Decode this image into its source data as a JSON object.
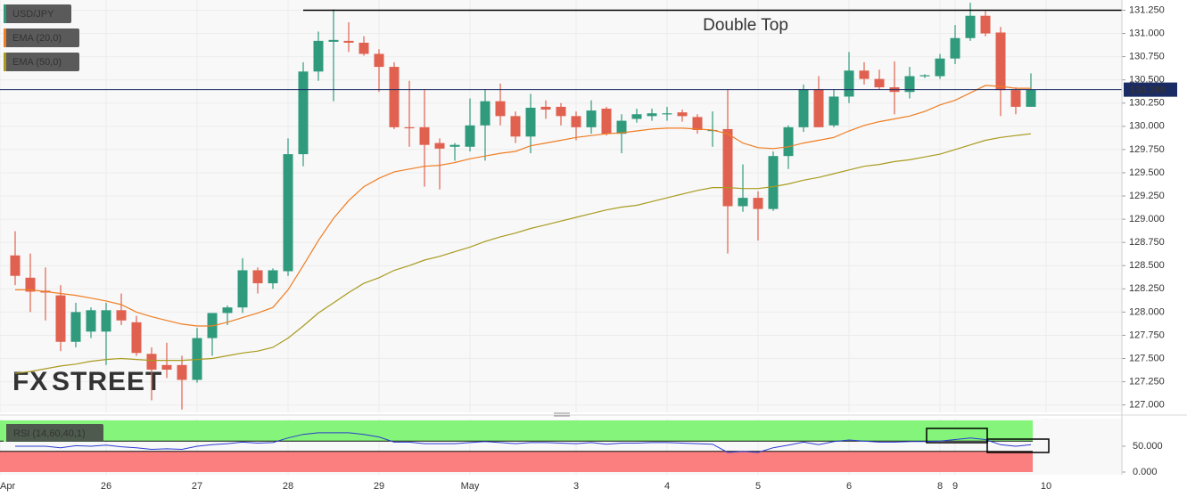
{
  "chart_data": {
    "type": "candlestick",
    "x": [
      0,
      1,
      2,
      3,
      4,
      5,
      6,
      7,
      8,
      9,
      10,
      11,
      12,
      13,
      14,
      15,
      16,
      17,
      18,
      19,
      20,
      21,
      22,
      23,
      24,
      25,
      26,
      27,
      28,
      29,
      30,
      31,
      32,
      33,
      34,
      35,
      36,
      37,
      38,
      39,
      40,
      41,
      42,
      43,
      44,
      45,
      46,
      47,
      48,
      49,
      50,
      51,
      52,
      53,
      54,
      55,
      56,
      57,
      58,
      59,
      60,
      61,
      62,
      63,
      64,
      65,
      66,
      67
    ],
    "xlim": [
      -1,
      73
    ],
    "xticks": [
      {
        "value": -1,
        "label": "Apr"
      },
      {
        "value": 6,
        "label": "26"
      },
      {
        "value": 12,
        "label": "27"
      },
      {
        "value": 18,
        "label": "28"
      },
      {
        "value": 24,
        "label": "29"
      },
      {
        "value": 30,
        "label": "May"
      },
      {
        "value": 37,
        "label": "3"
      },
      {
        "value": 43,
        "label": "4"
      },
      {
        "value": 49,
        "label": "5"
      },
      {
        "value": 55,
        "label": "6"
      },
      {
        "value": 61,
        "label": "8"
      },
      {
        "value": 62,
        "label": "9"
      },
      {
        "value": 68,
        "label": "10"
      }
    ],
    "ylim": [
      126.92,
      131.36
    ],
    "yticks": [
      {
        "value": 127,
        "label": "127.000"
      },
      {
        "value": 127.25,
        "label": "127.250"
      },
      {
        "value": 127.5,
        "label": "127.500"
      },
      {
        "value": 127.75,
        "label": "127.750"
      },
      {
        "value": 128,
        "label": "128.000"
      },
      {
        "value": 128.25,
        "label": "128.250"
      },
      {
        "value": 128.5,
        "label": "128.500"
      },
      {
        "value": 128.75,
        "label": "128.750"
      },
      {
        "value": 129,
        "label": "129.000"
      },
      {
        "value": 129.25,
        "label": "129.250"
      },
      {
        "value": 129.5,
        "label": "129.500"
      },
      {
        "value": 129.75,
        "label": "129.750"
      },
      {
        "value": 130,
        "label": "130.000"
      },
      {
        "value": 130.25,
        "label": "130.250"
      },
      {
        "value": 130.5,
        "label": "130.500"
      },
      {
        "value": 130.75,
        "label": "130.750"
      },
      {
        "value": 131,
        "label": "131.000"
      },
      {
        "value": 131.25,
        "label": "131.250"
      }
    ],
    "grid": true,
    "last_price": 130.395,
    "annotation": {
      "text": "Double Top",
      "level": 131.25
    },
    "watermark": [
      "FX",
      "STREET"
    ],
    "series": [
      {
        "name": "USD/JPY",
        "color": "#2f9a7c",
        "down_color": "#e0614f",
        "open": [
          128.61,
          128.37,
          128.23,
          128.18,
          127.68,
          127.79,
          127.79,
          128.02,
          127.89,
          127.55,
          127.43,
          127.43,
          127.27,
          127.72,
          127.99,
          128.05,
          128.45,
          128.31,
          128.44,
          129.7,
          130.59,
          130.91,
          130.92,
          130.9,
          130.78,
          130.64,
          129.99,
          129.99,
          129.82,
          129.78,
          129.78,
          130.01,
          130.27,
          130.11,
          129.89,
          130.21,
          130.21,
          130.11,
          129.99,
          130.19,
          129.92,
          130.08,
          130.11,
          130.13,
          130.15,
          130.1,
          129.95,
          129.97,
          129.14,
          129.23,
          129.11,
          129.68,
          129.99,
          130.4,
          130.01,
          130.32,
          130.6,
          130.51,
          130.42,
          130.37,
          130.54,
          130.54,
          130.73,
          130.95,
          131.19,
          131.01,
          130.39,
          130.21
        ],
        "high": [
          128.87,
          128.63,
          128.48,
          128.29,
          128.1,
          128.05,
          128.1,
          128.2,
          127.96,
          127.62,
          127.67,
          127.53,
          127.83,
          127.99,
          128.07,
          128.58,
          128.48,
          128.47,
          129.87,
          130.69,
          131.02,
          131.26,
          131.12,
          130.97,
          130.83,
          130.69,
          130.49,
          130.4,
          129.87,
          129.82,
          130.3,
          130.4,
          130.46,
          130.16,
          130.35,
          130.28,
          130.25,
          130.16,
          130.28,
          130.21,
          130.13,
          130.19,
          130.19,
          130.21,
          130.18,
          130.13,
          130.16,
          130.4,
          129.59,
          129.3,
          129.73,
          130.01,
          130.45,
          130.54,
          130.4,
          130.8,
          130.69,
          130.61,
          130.7,
          130.64,
          130.56,
          130.78,
          131.09,
          131.33,
          131.24,
          131.07,
          130.42,
          130.57
        ],
        "low": [
          128.29,
          128.0,
          127.91,
          127.58,
          127.62,
          127.72,
          127.43,
          127.86,
          127.53,
          127.05,
          127.29,
          126.95,
          127.24,
          127.53,
          127.86,
          127.99,
          128.2,
          128.25,
          128.39,
          129.57,
          130.49,
          130.27,
          130.8,
          130.76,
          130.37,
          129.97,
          129.78,
          129.35,
          129.32,
          129.63,
          129.73,
          129.63,
          130.01,
          129.82,
          129.71,
          130.08,
          130.01,
          129.85,
          129.92,
          129.9,
          129.71,
          130.04,
          130.06,
          130.06,
          130.05,
          129.92,
          129.78,
          128.63,
          129.08,
          128.77,
          129.09,
          129.54,
          129.94,
          129.99,
          129.99,
          130.25,
          130.45,
          130.4,
          130.13,
          130.3,
          130.52,
          130.51,
          130.67,
          130.92,
          130.97,
          130.11,
          130.13,
          130.21
        ],
        "close": [
          128.39,
          128.22,
          128.21,
          127.68,
          128.0,
          128.02,
          128.02,
          127.91,
          127.56,
          127.38,
          127.38,
          127.27,
          127.72,
          127.99,
          128.05,
          128.45,
          128.31,
          128.45,
          129.7,
          130.59,
          130.92,
          130.93,
          130.9,
          130.78,
          130.64,
          129.99,
          129.98,
          129.8,
          129.76,
          129.8,
          130.01,
          130.27,
          130.11,
          129.89,
          130.2,
          130.18,
          130.11,
          129.99,
          130.17,
          129.92,
          130.06,
          130.13,
          130.14,
          130.14,
          130.11,
          129.96,
          129.96,
          129.14,
          129.23,
          129.11,
          129.68,
          129.99,
          130.4,
          129.99,
          130.32,
          130.6,
          130.51,
          130.42,
          130.37,
          130.54,
          130.55,
          130.73,
          130.95,
          131.19,
          131.0,
          130.39,
          130.21,
          130.395
        ]
      },
      {
        "name": "EMA (20,0)",
        "color": "#ef7d22",
        "values": [
          128.24,
          128.24,
          128.22,
          128.2,
          128.18,
          128.15,
          128.12,
          128.08,
          128.0,
          127.95,
          127.91,
          127.87,
          127.85,
          127.85,
          127.89,
          127.94,
          127.99,
          128.05,
          128.24,
          128.5,
          128.77,
          129.01,
          129.2,
          129.35,
          129.44,
          129.51,
          129.54,
          129.57,
          129.58,
          129.61,
          129.65,
          129.68,
          129.71,
          129.73,
          129.79,
          129.82,
          129.85,
          129.88,
          129.9,
          129.92,
          129.93,
          129.95,
          129.97,
          129.98,
          129.98,
          129.97,
          129.96,
          129.92,
          129.82,
          129.77,
          129.76,
          129.78,
          129.82,
          129.85,
          129.88,
          129.95,
          130.01,
          130.05,
          130.08,
          130.11,
          130.16,
          130.23,
          130.28,
          130.36,
          130.44,
          130.43,
          130.41,
          130.41
        ]
      },
      {
        "name": "EMA (50,0)",
        "color": "#a89b1f",
        "values": [
          127.34,
          127.36,
          127.39,
          127.42,
          127.44,
          127.47,
          127.49,
          127.5,
          127.49,
          127.48,
          127.48,
          127.48,
          127.49,
          127.5,
          127.53,
          127.56,
          127.58,
          127.62,
          127.72,
          127.85,
          127.99,
          128.1,
          128.21,
          128.31,
          128.37,
          128.45,
          128.5,
          128.56,
          128.6,
          128.65,
          128.7,
          128.76,
          128.81,
          128.85,
          128.9,
          128.94,
          128.98,
          129.02,
          129.06,
          129.1,
          129.13,
          129.15,
          129.19,
          129.23,
          129.27,
          129.31,
          129.34,
          129.34,
          129.33,
          129.33,
          129.35,
          129.38,
          129.42,
          129.45,
          129.49,
          129.53,
          129.57,
          129.59,
          129.62,
          129.64,
          129.67,
          129.7,
          129.75,
          129.8,
          129.85,
          129.88,
          129.9,
          129.92
        ]
      }
    ],
    "rsi": {
      "name": "RSI (14,60,40,1)",
      "color": "#2a3ad0",
      "upper": 60,
      "lower": 40,
      "ylim": [
        0,
        100
      ],
      "yticks": [
        {
          "value": 0,
          "label": "0.000"
        },
        {
          "value": 50,
          "label": "50.000"
        }
      ],
      "values": [
        50,
        50,
        50,
        47,
        51,
        50,
        52,
        49,
        47,
        44,
        45,
        44,
        50,
        53,
        55,
        58,
        56,
        57,
        66,
        73,
        76,
        76,
        76,
        73,
        68,
        58,
        58,
        55,
        55,
        55,
        57,
        59,
        57,
        55,
        57,
        57,
        56,
        55,
        57,
        54,
        56,
        56,
        57,
        57,
        56,
        55,
        54,
        38,
        40,
        38,
        47,
        52,
        58,
        53,
        59,
        62,
        60,
        58,
        58,
        59,
        59,
        60,
        63,
        66,
        63,
        53,
        50,
        53
      ]
    }
  }
}
